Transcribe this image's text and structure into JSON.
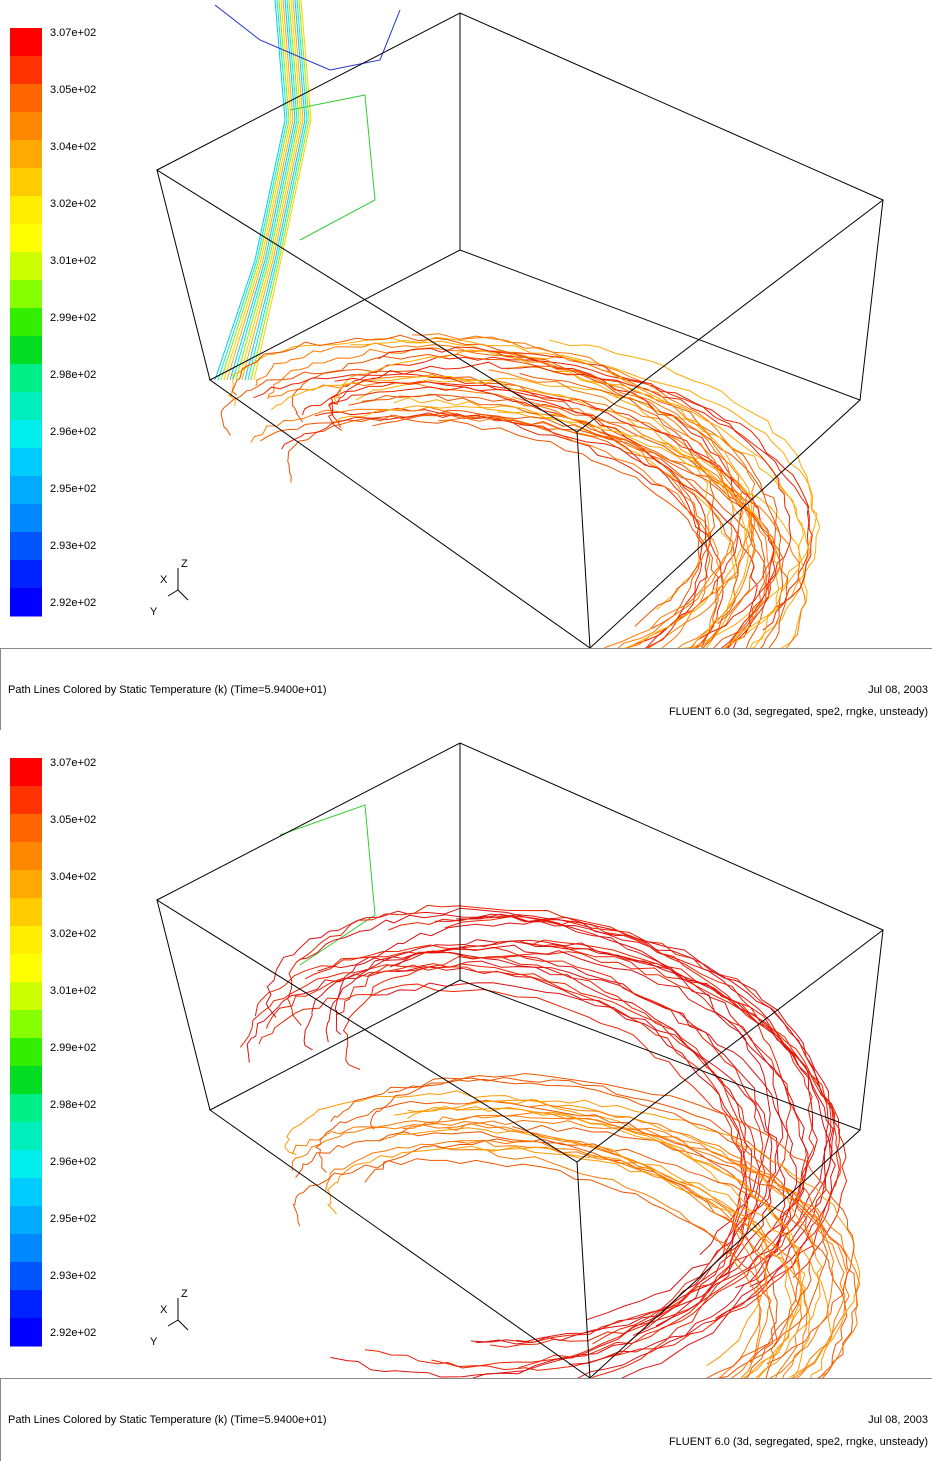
{
  "panels": [
    {
      "colorbar_labels": [
        "3.07e+02",
        "3.05e+02",
        "3.04e+02",
        "3.02e+02",
        "3.01e+02",
        "2.99e+02",
        "2.98e+02",
        "2.96e+02",
        "2.95e+02",
        "2.93e+02",
        "2.92e+02"
      ],
      "axes": {
        "x": "X",
        "y": "Y",
        "z": "Z"
      },
      "caption": "Path Lines Colored by Static Temperature (k)  (Time=5.9400e+01)",
      "date": "Jul 08, 2003",
      "software": "FLUENT 6.0 (3d, segregated, spe2, rngke, unsteady)"
    },
    {
      "colorbar_labels": [
        "3.07e+02",
        "3.05e+02",
        "3.04e+02",
        "3.02e+02",
        "3.01e+02",
        "2.99e+02",
        "2.98e+02",
        "2.96e+02",
        "2.95e+02",
        "2.93e+02",
        "2.92e+02"
      ],
      "axes": {
        "x": "X",
        "y": "Y",
        "z": "Z"
      },
      "caption": "Path Lines Colored by Static Temperature (k)  (Time=5.9400e+01)",
      "date": "Jul 08, 2003",
      "software": "FLUENT 6.0 (3d, segregated, spe2, rngke, unsteady)"
    }
  ]
}
